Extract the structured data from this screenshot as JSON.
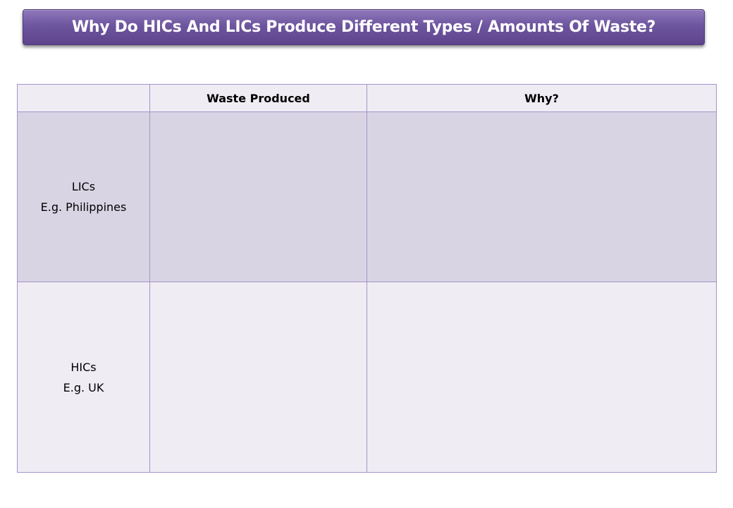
{
  "title": "Why Do HICs And LICs Produce Different Types / Amounts Of Waste?",
  "table": {
    "headers": [
      "",
      "Waste Produced",
      "Why?"
    ],
    "rows": [
      {
        "label_line1": "LICs",
        "label_line2": "E.g. Philippines",
        "waste_produced": "",
        "why": ""
      },
      {
        "label_line1": "HICs",
        "label_line2": "E.g. UK",
        "waste_produced": "",
        "why": ""
      }
    ]
  },
  "colors": {
    "banner": "#6e559f",
    "border": "#a494c8",
    "row_dark": "#d9d4e4",
    "row_light": "#efecf4"
  }
}
